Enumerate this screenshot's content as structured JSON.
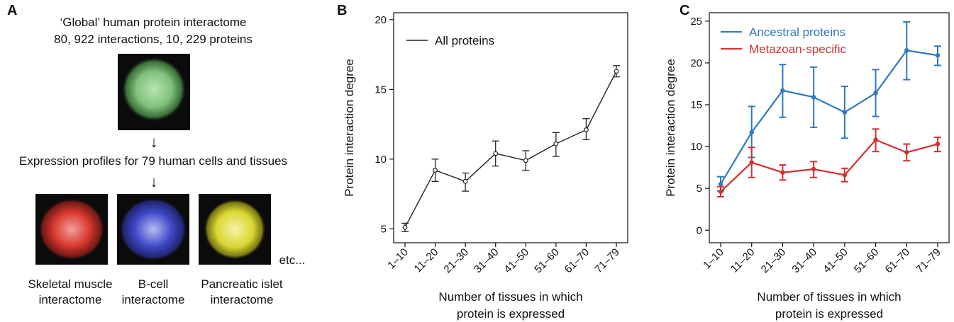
{
  "panel_a": {
    "letter": "A",
    "title_line1": "‘Global’ human protein interactome",
    "title_line2": "80, 922 interactions, 10, 229 proteins",
    "expression_text": "Expression profiles for 79 human cells and tissues",
    "etc_label": "etc...",
    "tissues": [
      {
        "name_line1": "Skeletal muscle",
        "name_line2": "interactome",
        "color": "#d8382f"
      },
      {
        "name_line1": "B-cell",
        "name_line2": "interactome",
        "color": "#3f48c9"
      },
      {
        "name_line1": "Pancreatic islet",
        "name_line2": "interactome",
        "color": "#d8d62f"
      }
    ],
    "global_color": "#7fc27a",
    "arrow_glyph": "↓"
  },
  "panel_b": {
    "letter": "B"
  },
  "panel_c": {
    "letter": "C"
  },
  "chart_data": [
    {
      "type": "line",
      "categories": [
        "1–10",
        "11–20",
        "21–30",
        "31–40",
        "41–50",
        "51–60",
        "61–70",
        "71–79"
      ],
      "series": [
        {
          "name": "All proteins",
          "color": "#222222",
          "values": [
            5.1,
            9.2,
            8.4,
            10.4,
            9.9,
            11.1,
            12.1,
            16.3
          ],
          "err_low": [
            4.8,
            8.4,
            7.7,
            9.5,
            9.2,
            10.2,
            11.4,
            15.9
          ],
          "err_high": [
            5.4,
            10.0,
            9.0,
            11.3,
            10.6,
            11.9,
            12.9,
            16.7
          ]
        }
      ],
      "xlabel": "Number of tissues in which protein is expressed",
      "xlabel_line1": "Number of tissues in which",
      "xlabel_line2": "protein is expressed",
      "ylabel": "Protein interaction degree",
      "ylim": [
        4,
        20.5
      ],
      "yticks": [
        5,
        10,
        15,
        20
      ],
      "grid": false,
      "legend_position": "top-left"
    },
    {
      "type": "line",
      "categories": [
        "1–10",
        "11–20",
        "21–30",
        "31–40",
        "41–50",
        "51–60",
        "61–70",
        "71–79"
      ],
      "series": [
        {
          "name": "Ancestral proteins",
          "color": "#2f78bf",
          "values": [
            5.5,
            11.7,
            16.7,
            15.9,
            14.1,
            16.4,
            21.5,
            20.9
          ],
          "err_low": [
            4.7,
            8.7,
            13.5,
            12.3,
            11.0,
            13.6,
            18.0,
            19.7
          ],
          "err_high": [
            6.4,
            14.8,
            19.8,
            19.5,
            17.2,
            19.2,
            24.9,
            22.0
          ]
        },
        {
          "name": "Metazoan-specific",
          "color": "#d32f2f",
          "values": [
            4.6,
            8.1,
            6.9,
            7.3,
            6.6,
            10.8,
            9.3,
            10.3
          ],
          "err_low": [
            4.0,
            6.3,
            6.0,
            6.3,
            5.8,
            9.4,
            8.3,
            9.4
          ],
          "err_high": [
            5.2,
            9.9,
            7.8,
            8.2,
            7.4,
            12.1,
            10.3,
            11.1
          ]
        }
      ],
      "xlabel": "Number of tissues in which protein is expressed",
      "xlabel_line1": "Number of tissues in which",
      "xlabel_line2": "protein is expressed",
      "ylabel": "Protein interaction degree",
      "ylim": [
        -1.5,
        26
      ],
      "yticks": [
        0,
        5,
        10,
        15,
        20,
        25
      ],
      "grid": false,
      "legend_position": "top-left"
    }
  ]
}
